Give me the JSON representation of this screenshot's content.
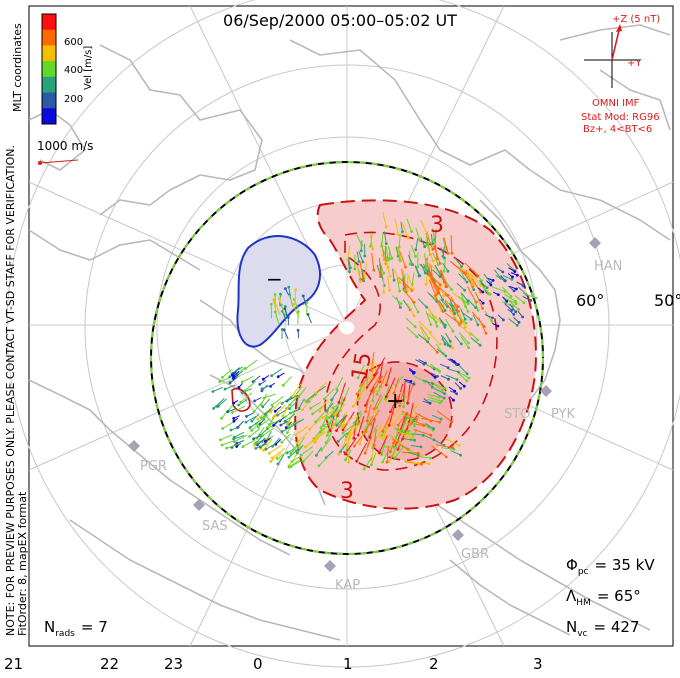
{
  "title": "06/Sep/2000 05:00–05:02 UT",
  "colorbar": {
    "label": "Vel [m/s]",
    "ticks": [
      "600",
      "400",
      "200"
    ],
    "colors": [
      "#ff1010",
      "#ff6a00",
      "#f3c000",
      "#62d82a",
      "#2aa27a",
      "#2a5aa8",
      "#0a0adf"
    ]
  },
  "coords_label": "MLT coordinates",
  "ref_vector_label": "1000 m/s",
  "side_note": "NOTE: FOR PREVIEW PURPOSES ONLY. PLEASE CONTACT VT-SD STAFF FOR VERIFICATION.",
  "fit_order": "FitOrder: 8, mapEX format",
  "imf": {
    "z_label": "+Z (5 nT)",
    "y_label": "+Y",
    "omni_label": "OMNI IMF",
    "model_label": "Stat Mod: RG96",
    "condition_label": "Bz+, 4<BT<6"
  },
  "contour_labels": [
    "3",
    "15",
    "3"
  ],
  "cell_markers": [
    "−",
    "+"
  ],
  "latitude_labels": [
    "60°",
    "50°"
  ],
  "sites": [
    "HAN",
    "PYK",
    "STO",
    "PGR",
    "SAS",
    "KAP",
    "GBR"
  ],
  "stats": {
    "phi_label": "Φ",
    "phi_sub": "pc",
    "phi_value": "= 35 kV",
    "lambda_label": "Λ",
    "lambda_sub": "HM",
    "lambda_value": "= 65°",
    "nvc_label": "N",
    "nvc_sub": "vc",
    "nvc_value": "= 427",
    "nrads_label": "N",
    "nrads_sub": "rads",
    "nrads_value": "= 7"
  },
  "mlt_ticks": [
    "21",
    "22",
    "23",
    "0",
    "1",
    "2",
    "3"
  ],
  "colors": {
    "potential_neg": "#1f35c8",
    "potential_pos": "#cc1010",
    "pos_fill": "#f6cccc",
    "neg_fill": "#dcdcee",
    "land": "#b9b9b9",
    "grid": "#c8c8c8"
  }
}
